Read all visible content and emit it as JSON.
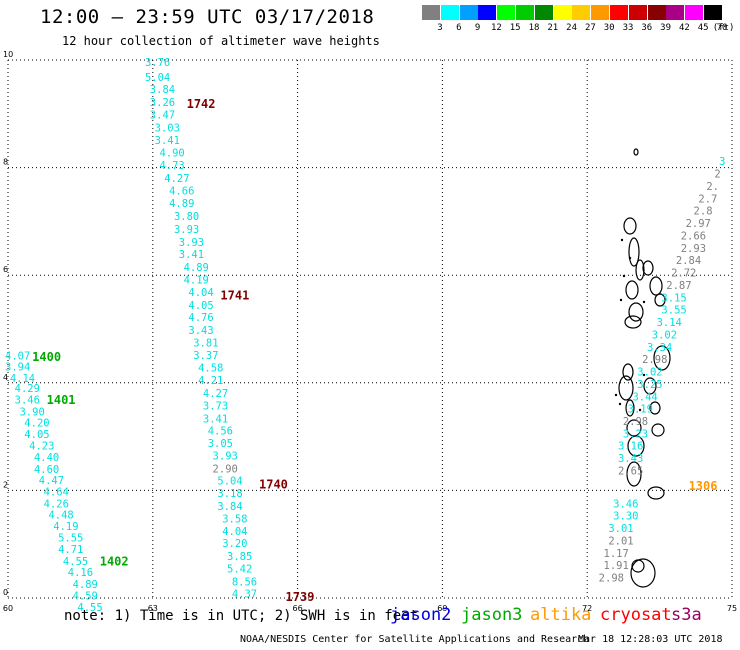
{
  "header": {
    "title": "12:00 – 23:59 UTC 03/17/2018",
    "subtitle": "12 hour collection of altimeter wave heights"
  },
  "legend": {
    "unit": "(ft)",
    "bins": [
      {
        "label": "3",
        "color": "#808080"
      },
      {
        "label": "6",
        "color": "#00ffff"
      },
      {
        "label": "9",
        "color": "#00a0ff"
      },
      {
        "label": "12",
        "color": "#0000ff"
      },
      {
        "label": "15",
        "color": "#00ff00"
      },
      {
        "label": "18",
        "color": "#00cc00"
      },
      {
        "label": "21",
        "color": "#008800"
      },
      {
        "label": "24",
        "color": "#ffff00"
      },
      {
        "label": "27",
        "color": "#ffcc00"
      },
      {
        "label": "30",
        "color": "#ff9900"
      },
      {
        "label": "33",
        "color": "#ff0000"
      },
      {
        "label": "36",
        "color": "#cc0000"
      },
      {
        "label": "39",
        "color": "#880000"
      },
      {
        "label": "42",
        "color": "#aa0088"
      },
      {
        "label": "45",
        "color": "#ff00ff"
      },
      {
        "label": "70",
        "color": "#000000"
      }
    ]
  },
  "axes": {
    "x_ticks": [
      "60",
      "63",
      "66",
      "69",
      "72",
      "75"
    ],
    "y_ticks": [
      "0",
      "2",
      "4",
      "6",
      "8",
      "10"
    ]
  },
  "colors": {
    "cyan": "#00e0e0",
    "gray": "#808080",
    "green": "#00aa00",
    "darkgreen": "#007700",
    "darkred": "#800000",
    "orange": "#ff9900",
    "blue": "#0000dd",
    "red": "#ff0000",
    "purple": "#990066"
  },
  "tracks": [
    {
      "time": "1742",
      "time_color": "darkred",
      "time_lon": 64.0,
      "time_lat": 9.2,
      "points": [
        {
          "lon": 63.1,
          "lat": 9.96,
          "v": "3.76",
          "c": "cyan"
        },
        {
          "lon": 63.1,
          "lat": 9.68,
          "v": "5.04",
          "c": "cyan"
        },
        {
          "lon": 63.2,
          "lat": 9.46,
          "v": "3.84",
          "c": "cyan"
        },
        {
          "lon": 63.2,
          "lat": 9.22,
          "v": "3.26",
          "c": "cyan"
        },
        {
          "lon": 63.2,
          "lat": 8.99,
          "v": "3.47",
          "c": "cyan"
        },
        {
          "lon": 63.3,
          "lat": 8.75,
          "v": "3.03",
          "c": "cyan"
        },
        {
          "lon": 63.3,
          "lat": 8.51,
          "v": "3.41",
          "c": "cyan"
        },
        {
          "lon": 63.4,
          "lat": 8.28,
          "v": "4.90",
          "c": "cyan"
        },
        {
          "lon": 63.4,
          "lat": 8.05,
          "v": "4.73",
          "c": "cyan"
        },
        {
          "lon": 63.5,
          "lat": 7.81,
          "v": "4.27",
          "c": "cyan"
        },
        {
          "lon": 63.6,
          "lat": 7.57,
          "v": "4.66",
          "c": "cyan"
        },
        {
          "lon": 63.6,
          "lat": 7.34,
          "v": "4.89",
          "c": "cyan"
        },
        {
          "lon": 63.7,
          "lat": 7.1,
          "v": "3.80",
          "c": "cyan"
        },
        {
          "lon": 63.7,
          "lat": 6.86,
          "v": "3.93",
          "c": "cyan"
        },
        {
          "lon": 63.8,
          "lat": 6.62,
          "v": "3.93",
          "c": "cyan"
        },
        {
          "lon": 63.8,
          "lat": 6.39,
          "v": "3.41",
          "c": "cyan"
        },
        {
          "lon": 63.9,
          "lat": 6.15,
          "v": "4.89",
          "c": "cyan"
        },
        {
          "lon": 63.9,
          "lat": 5.92,
          "v": "4.19",
          "c": "cyan"
        }
      ]
    },
    {
      "time": "1741",
      "time_color": "darkred",
      "time_lon": 64.7,
      "time_lat": 5.64,
      "points": [
        {
          "lon": 64.0,
          "lat": 5.69,
          "v": "4.04",
          "c": "cyan"
        },
        {
          "lon": 64.0,
          "lat": 5.45,
          "v": "4.05",
          "c": "cyan"
        },
        {
          "lon": 64.0,
          "lat": 5.22,
          "v": "4.76",
          "c": "cyan"
        },
        {
          "lon": 64.0,
          "lat": 4.98,
          "v": "3.43",
          "c": "cyan"
        },
        {
          "lon": 64.1,
          "lat": 4.75,
          "v": "3.81",
          "c": "cyan"
        },
        {
          "lon": 64.1,
          "lat": 4.52,
          "v": "3.37",
          "c": "cyan"
        },
        {
          "lon": 64.2,
          "lat": 4.28,
          "v": "4.58",
          "c": "cyan"
        },
        {
          "lon": 64.2,
          "lat": 4.05,
          "v": "4.21",
          "c": "cyan"
        },
        {
          "lon": 64.3,
          "lat": 3.81,
          "v": "4.27",
          "c": "cyan"
        },
        {
          "lon": 64.3,
          "lat": 3.58,
          "v": "3.73",
          "c": "cyan"
        },
        {
          "lon": 64.3,
          "lat": 3.34,
          "v": "3.41",
          "c": "cyan"
        },
        {
          "lon": 64.4,
          "lat": 3.11,
          "v": "4.56",
          "c": "cyan"
        },
        {
          "lon": 64.4,
          "lat": 2.88,
          "v": "3.05",
          "c": "cyan"
        },
        {
          "lon": 64.5,
          "lat": 2.65,
          "v": "3.93",
          "c": "cyan"
        },
        {
          "lon": 64.5,
          "lat": 2.41,
          "v": "2.90",
          "c": "gray"
        },
        {
          "lon": 64.6,
          "lat": 2.18,
          "v": "5.04",
          "c": "cyan"
        }
      ]
    },
    {
      "time": "1740",
      "time_color": "darkred",
      "time_lon": 65.5,
      "time_lat": 2.13,
      "points": [
        {
          "lon": 64.6,
          "lat": 1.95,
          "v": "3.18",
          "c": "cyan"
        },
        {
          "lon": 64.6,
          "lat": 1.71,
          "v": "3.84",
          "c": "cyan"
        },
        {
          "lon": 64.7,
          "lat": 1.48,
          "v": "3.58",
          "c": "cyan"
        },
        {
          "lon": 64.7,
          "lat": 1.25,
          "v": "4.04",
          "c": "cyan"
        },
        {
          "lon": 64.7,
          "lat": 1.02,
          "v": "3.20",
          "c": "cyan"
        },
        {
          "lon": 64.8,
          "lat": 0.78,
          "v": "3.85",
          "c": "cyan"
        },
        {
          "lon": 64.8,
          "lat": 0.55,
          "v": "5.42",
          "c": "cyan"
        },
        {
          "lon": 64.9,
          "lat": 0.31,
          "v": "8.56",
          "c": "cyan"
        },
        {
          "lon": 64.9,
          "lat": 0.08,
          "v": "4.37",
          "c": "cyan"
        }
      ]
    },
    {
      "time": "1739",
      "time_color": "darkred",
      "time_lon": 66.05,
      "time_lat": 0.04,
      "points": []
    },
    {
      "time": "1400",
      "time_color": "green",
      "time_lon": 60.8,
      "time_lat": 4.5,
      "points": [
        {
          "lon": 60.2,
          "lat": 4.51,
          "v": "4.07",
          "c": "cyan"
        },
        {
          "lon": 60.2,
          "lat": 4.3,
          "v": "3.94",
          "c": "cyan"
        },
        {
          "lon": 60.3,
          "lat": 4.09,
          "v": "4.14",
          "c": "cyan"
        }
      ]
    },
    {
      "time": "1401",
      "time_color": "green",
      "time_lon": 61.1,
      "time_lat": 3.7,
      "points": [
        {
          "lon": 60.4,
          "lat": 3.9,
          "v": "4.29",
          "c": "cyan"
        },
        {
          "lon": 60.4,
          "lat": 3.69,
          "v": "3.46",
          "c": "cyan"
        },
        {
          "lon": 60.5,
          "lat": 3.47,
          "v": "3.90",
          "c": "cyan"
        },
        {
          "lon": 60.6,
          "lat": 3.26,
          "v": "4.20",
          "c": "cyan"
        },
        {
          "lon": 60.6,
          "lat": 3.05,
          "v": "4.05",
          "c": "cyan"
        },
        {
          "lon": 60.7,
          "lat": 2.83,
          "v": "4.23",
          "c": "cyan"
        },
        {
          "lon": 60.8,
          "lat": 2.62,
          "v": "4.40",
          "c": "cyan"
        },
        {
          "lon": 60.8,
          "lat": 2.4,
          "v": "4.60",
          "c": "cyan"
        },
        {
          "lon": 60.9,
          "lat": 2.19,
          "v": "4.47",
          "c": "cyan"
        },
        {
          "lon": 61.0,
          "lat": 1.98,
          "v": "4.64",
          "c": "cyan"
        },
        {
          "lon": 61.0,
          "lat": 1.76,
          "v": "4.26",
          "c": "cyan"
        },
        {
          "lon": 61.1,
          "lat": 1.55,
          "v": "4.48",
          "c": "cyan"
        },
        {
          "lon": 61.2,
          "lat": 1.34,
          "v": "4.19",
          "c": "cyan"
        },
        {
          "lon": 61.3,
          "lat": 1.12,
          "v": "5.55",
          "c": "cyan"
        },
        {
          "lon": 61.3,
          "lat": 0.91,
          "v": "4.71",
          "c": "cyan"
        },
        {
          "lon": 61.4,
          "lat": 0.69,
          "v": "4.55",
          "c": "cyan"
        },
        {
          "lon": 61.5,
          "lat": 0.48,
          "v": "4.16",
          "c": "cyan"
        },
        {
          "lon": 61.6,
          "lat": 0.26,
          "v": "4.89",
          "c": "cyan"
        },
        {
          "lon": 61.6,
          "lat": 0.05,
          "v": "4.59",
          "c": "cyan"
        },
        {
          "lon": 61.7,
          "lat": -0.17,
          "v": "4.55",
          "c": "cyan"
        }
      ]
    },
    {
      "time": "1402",
      "time_color": "green",
      "time_lon": 62.2,
      "time_lat": 0.7,
      "points": []
    },
    {
      "time": "1306",
      "time_color": "orange",
      "time_lon": 74.4,
      "time_lat": 2.1,
      "points": [
        {
          "lon": 74.8,
          "lat": 8.12,
          "v": "3",
          "c": "cyan"
        },
        {
          "lon": 74.7,
          "lat": 7.89,
          "v": "2",
          "c": "gray"
        },
        {
          "lon": 74.6,
          "lat": 7.66,
          "v": "2.",
          "c": "gray"
        },
        {
          "lon": 74.5,
          "lat": 7.43,
          "v": "2.7",
          "c": "gray"
        },
        {
          "lon": 74.4,
          "lat": 7.2,
          "v": "2.8",
          "c": "gray"
        },
        {
          "lon": 74.3,
          "lat": 6.97,
          "v": "2.97",
          "c": "gray"
        },
        {
          "lon": 74.2,
          "lat": 6.74,
          "v": "2.66",
          "c": "gray"
        },
        {
          "lon": 74.2,
          "lat": 6.51,
          "v": "2.93",
          "c": "gray"
        },
        {
          "lon": 74.1,
          "lat": 6.28,
          "v": "2.84",
          "c": "gray"
        },
        {
          "lon": 74.0,
          "lat": 6.05,
          "v": "2.72",
          "c": "gray"
        },
        {
          "lon": 73.9,
          "lat": 5.82,
          "v": "2.87",
          "c": "gray"
        },
        {
          "lon": 73.8,
          "lat": 5.59,
          "v": "3.15",
          "c": "cyan"
        },
        {
          "lon": 73.8,
          "lat": 5.36,
          "v": "3.55",
          "c": "cyan"
        },
        {
          "lon": 73.7,
          "lat": 5.13,
          "v": "3.14",
          "c": "cyan"
        },
        {
          "lon": 73.6,
          "lat": 4.9,
          "v": "3.02",
          "c": "cyan"
        },
        {
          "lon": 73.5,
          "lat": 4.67,
          "v": "3.34",
          "c": "cyan"
        },
        {
          "lon": 73.4,
          "lat": 4.44,
          "v": "2.98",
          "c": "gray"
        },
        {
          "lon": 73.3,
          "lat": 4.21,
          "v": "3.02",
          "c": "cyan"
        },
        {
          "lon": 73.3,
          "lat": 3.98,
          "v": "3.25",
          "c": "cyan"
        },
        {
          "lon": 73.2,
          "lat": 3.75,
          "v": "3.44",
          "c": "cyan"
        },
        {
          "lon": 73.1,
          "lat": 3.52,
          "v": "3.19",
          "c": "cyan"
        },
        {
          "lon": 73.0,
          "lat": 3.29,
          "v": "2.98",
          "c": "gray"
        },
        {
          "lon": 73.0,
          "lat": 3.06,
          "v": "3.23",
          "c": "cyan"
        },
        {
          "lon": 72.9,
          "lat": 2.83,
          "v": "3.16",
          "c": "cyan"
        },
        {
          "lon": 72.9,
          "lat": 2.6,
          "v": "3.43",
          "c": "cyan"
        },
        {
          "lon": 72.9,
          "lat": 2.37,
          "v": "2.65",
          "c": "gray"
        },
        {
          "lon": 72.8,
          "lat": 1.76,
          "v": "3.46",
          "c": "cyan"
        },
        {
          "lon": 72.8,
          "lat": 1.53,
          "v": "3.30",
          "c": "cyan"
        },
        {
          "lon": 72.7,
          "lat": 1.3,
          "v": "3.01",
          "c": "cyan"
        },
        {
          "lon": 72.7,
          "lat": 1.07,
          "v": "2.01",
          "c": "gray"
        },
        {
          "lon": 72.6,
          "lat": 0.84,
          "v": "1.17",
          "c": "gray"
        },
        {
          "lon": 72.6,
          "lat": 0.61,
          "v": "1.91",
          "c": "gray"
        },
        {
          "lon": 72.5,
          "lat": 0.38,
          "v": "2.98",
          "c": "gray"
        }
      ]
    }
  ],
  "footer": {
    "note": "note: 1) Time is in UTC; 2) SWH is in feet",
    "satellites": [
      {
        "name": "jason2",
        "color": "#0000dd"
      },
      {
        "name": "jason3",
        "color": "#00aa00"
      },
      {
        "name": "altika",
        "color": "#ff9900"
      },
      {
        "name": "cryosat",
        "color": "#ff0000"
      },
      {
        "name": "s3a",
        "color": "#990066"
      }
    ],
    "credit": "NOAA/NESDIS Center for Satellite Applications and Research",
    "timestamp": "Mar 18 12:28:03 UTC 2018"
  }
}
